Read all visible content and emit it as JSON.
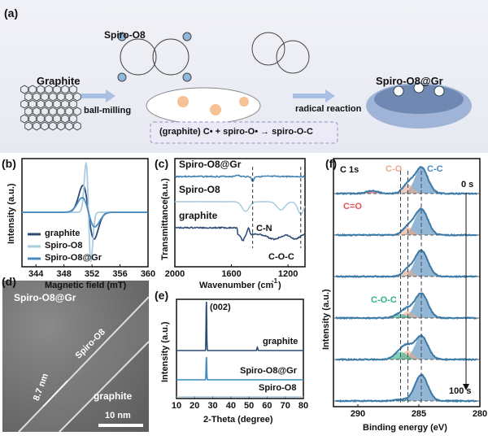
{
  "panel_a": {
    "label": "(a)",
    "graphite": "Graphite",
    "spiro": "Spiro-O8",
    "ball_milling": "ball-milling",
    "radical": "radical reaction",
    "product": "Spiro-O8@Gr",
    "equation": "(graphite) C• + spiro-O• → spiro-O-C"
  },
  "panel_d": {
    "label": "(d)",
    "title": "Spiro-O8@Gr",
    "layer": "Spiro-O8",
    "thickness": "8.7 nm",
    "substrate": "graphite",
    "scale": "10 nm"
  },
  "chart_data": [
    {
      "panel": "(b)",
      "type": "line",
      "xlabel": "Magnetic field (mT)",
      "ylabel": "Intensity (a.u.)",
      "xlim": [
        342,
        360
      ],
      "xticks": [
        344,
        348,
        352,
        356,
        360
      ],
      "legend": "bottom-left",
      "series": [
        {
          "name": "graphite",
          "color": "#2c4a72",
          "center": 351.5,
          "amplitude": 0.55,
          "width": 0.8
        },
        {
          "name": "Spiro-O8",
          "color": "#a8cce0",
          "center": 351.5,
          "amplitude": 1.0,
          "width": 0.35
        },
        {
          "name": "Spiro-O8@Gr",
          "color": "#4a8cc0",
          "center": 351.5,
          "amplitude": 0.3,
          "width": 0.9
        }
      ]
    },
    {
      "panel": "(c)",
      "type": "line",
      "xlabel": "Wavenumber (cm",
      "xlabel_sup": "-1",
      "xlabel_end": ")",
      "ylabel": "Transmittance(a.u.)",
      "xlim": [
        2000,
        1080
      ],
      "xticks": [
        2000,
        1600,
        1200
      ],
      "annotations": [
        "C-N",
        "C-O-C"
      ],
      "markers": [
        1450,
        1110
      ],
      "series": [
        {
          "name": "Spiro-O8@Gr",
          "color": "#3d7fb0"
        },
        {
          "name": "Spiro-O8",
          "color": "#a8cce0"
        },
        {
          "name": "graphite",
          "color": "#2c4a72"
        }
      ]
    },
    {
      "panel": "(e)",
      "type": "line",
      "xlabel": "2-Theta (degree)",
      "ylabel": "Intensity (a.u.)",
      "xlim": [
        10,
        80
      ],
      "xticks": [
        10,
        20,
        30,
        40,
        50,
        60,
        70,
        80
      ],
      "annotations": [
        "(002)"
      ],
      "series": [
        {
          "name": "graphite",
          "color": "#2c4a72",
          "peak": 26.5
        },
        {
          "name": "Spiro-O8@Gr",
          "color": "#3d8cc0",
          "peak": 26.5
        },
        {
          "name": "Spiro-O8",
          "color": "#a8cce0"
        }
      ]
    },
    {
      "panel": "(f)",
      "type": "line",
      "title": "C 1s",
      "xlabel": "Binding energy (eV)",
      "ylabel": "Intensity (a.u.)",
      "xlim": [
        292,
        280
      ],
      "xticks": [
        290,
        285,
        280
      ],
      "components": [
        {
          "name": "C-C",
          "center": 284.8,
          "color": "#4a86b8"
        },
        {
          "name": "C-O",
          "center": 285.9,
          "color": "#e8a98a"
        },
        {
          "name": "C-O-C",
          "center": 286.5,
          "color": "#2db38a"
        },
        {
          "name": "C=O",
          "center": 288.8,
          "color": "#e05050"
        }
      ],
      "time_start": "0 s",
      "time_end": "100 s",
      "markers": [
        286.5,
        285.9,
        284.8
      ],
      "spectra": [
        {
          "C-C": 1,
          "C-O": 0.35,
          "C-O-C": 0,
          "C=O": 0.1
        },
        {
          "C-C": 1,
          "C-O": 0.3,
          "C-O-C": 0,
          "C=O": 0
        },
        {
          "C-C": 1,
          "C-O": 0.25,
          "C-O-C": 0,
          "C=O": 0
        },
        {
          "C-C": 0.95,
          "C-O": 0.25,
          "C-O-C": 0.15,
          "C=O": 0
        },
        {
          "C-C": 0.9,
          "C-O": 0.35,
          "C-O-C": 0.3,
          "C=O": 0
        },
        {
          "C-C": 1,
          "C-O": 0,
          "C-O-C": 0.05,
          "C=O": 0
        }
      ]
    }
  ]
}
